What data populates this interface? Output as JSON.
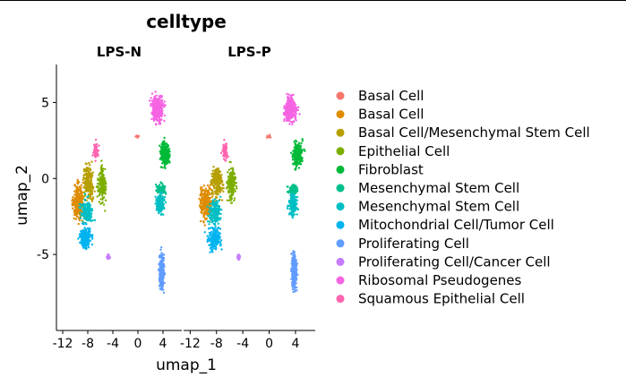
{
  "chart_data": {
    "type": "scatter",
    "title": "celltype",
    "xlabel": "umap_1",
    "ylabel": "umap_2",
    "facets": [
      "LPS-N",
      "LPS-P"
    ],
    "x_ticks": [
      -12,
      -8,
      -4,
      0,
      4
    ],
    "y_ticks": [
      5,
      0,
      -5
    ],
    "xlim": [
      -13,
      7
    ],
    "ylim": [
      -10,
      7.5
    ],
    "legend_position": "right",
    "series": [
      {
        "name": "Basal Cell",
        "color": "#F8766D"
      },
      {
        "name": "Basal Cell",
        "color": "#DE8C00"
      },
      {
        "name": "Basal Cell/Mesenchymal Stem Cell",
        "color": "#B79F00"
      },
      {
        "name": "Epithelial Cell",
        "color": "#7CAE00"
      },
      {
        "name": "Fibroblast",
        "color": "#00BA38"
      },
      {
        "name": "Mesenchymal Stem Cell",
        "color": "#00C08B"
      },
      {
        "name": "Mesenchymal Stem Cell",
        "color": "#00BFC4"
      },
      {
        "name": "Mitochondrial Cell/Tumor Cell",
        "color": "#00B4F0"
      },
      {
        "name": "Proliferating Cell",
        "color": "#619CFF"
      },
      {
        "name": "Proliferating Cell/Cancer Cell",
        "color": "#C77CFF"
      },
      {
        "name": "Ribosomal Pseudogenes",
        "color": "#F564E3"
      },
      {
        "name": "Squamous Epithelial Cell",
        "color": "#FF64B0"
      }
    ]
  }
}
